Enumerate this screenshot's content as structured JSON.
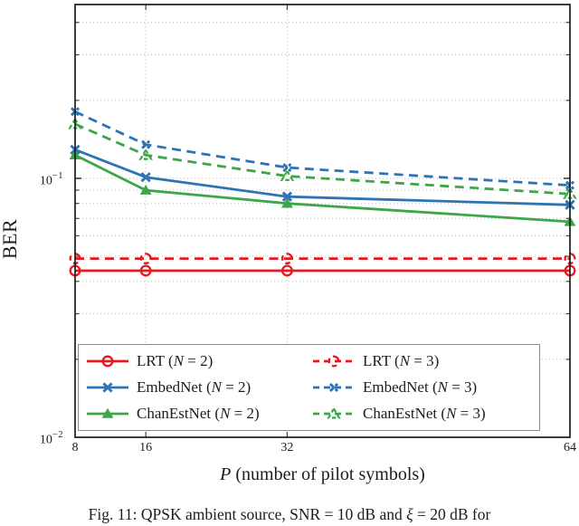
{
  "chart_data": {
    "type": "line",
    "title": "",
    "ylabel": "BER",
    "xlabel_segments": [
      {
        "t": "P",
        "i": true
      },
      {
        "t": " (number of pilot symbols)"
      }
    ],
    "xscale": "linear",
    "yscale": "log",
    "xlim": [
      8,
      64
    ],
    "ylim": [
      0.01,
      0.469
    ],
    "x": [
      8,
      16,
      32,
      64
    ],
    "xticks": {
      "values": [
        8,
        16,
        32,
        64
      ],
      "labels": [
        "8",
        "16",
        "32",
        "64"
      ]
    },
    "grid_x": [
      16,
      32
    ],
    "yticks": {
      "major": [
        {
          "value": 0.1,
          "base": "10",
          "exp": "−1"
        },
        {
          "value": 0.01,
          "base": "10",
          "exp": "−2"
        }
      ],
      "minor_values": [
        0.4,
        0.3,
        0.2,
        0.09,
        0.08,
        0.07,
        0.06,
        0.05,
        0.04,
        0.03,
        0.02
      ]
    },
    "grid": "dotted-both",
    "legend_position": "lower-left-inside",
    "series": [
      {
        "name": "LRT",
        "n": 2,
        "label_segments": [
          {
            "t": "LRT ("
          },
          {
            "t": "N",
            "i": true
          },
          {
            "t": " = 2)"
          }
        ],
        "color": "#e5191f",
        "line": "solid",
        "marker": "circle-open",
        "values": [
          0.044,
          0.044,
          0.044,
          0.044
        ]
      },
      {
        "name": "LRT",
        "n": 3,
        "label_segments": [
          {
            "t": "LRT ("
          },
          {
            "t": "N",
            "i": true
          },
          {
            "t": " = 3)"
          }
        ],
        "color": "#e5191f",
        "line": "dashed",
        "marker": "circle-open",
        "values": [
          0.049,
          0.049,
          0.049,
          0.049
        ]
      },
      {
        "name": "EmbedNet",
        "n": 2,
        "label_segments": [
          {
            "t": "EmbedNet ("
          },
          {
            "t": "N",
            "i": true
          },
          {
            "t": " = 2)"
          }
        ],
        "color": "#2e74b5",
        "line": "solid",
        "marker": "x",
        "values": [
          0.129,
          0.101,
          0.085,
          0.079
        ]
      },
      {
        "name": "EmbedNet",
        "n": 3,
        "label_segments": [
          {
            "t": "EmbedNet ("
          },
          {
            "t": "N",
            "i": true
          },
          {
            "t": " = 3)"
          }
        ],
        "color": "#2e74b5",
        "line": "dashed",
        "marker": "x",
        "values": [
          0.181,
          0.135,
          0.11,
          0.094
        ]
      },
      {
        "name": "ChanEstNet",
        "n": 2,
        "label_segments": [
          {
            "t": "ChanEstNet ("
          },
          {
            "t": "N",
            "i": true
          },
          {
            "t": " = 2)"
          }
        ],
        "color": "#3da648",
        "line": "solid",
        "marker": "triangle",
        "values": [
          0.123,
          0.09,
          0.08,
          0.068
        ]
      },
      {
        "name": "ChanEstNet",
        "n": 3,
        "label_segments": [
          {
            "t": "ChanEstNet ("
          },
          {
            "t": "N",
            "i": true
          },
          {
            "t": " = 3)"
          }
        ],
        "color": "#3da648",
        "line": "dashed",
        "marker": "triangle",
        "values": [
          0.162,
          0.123,
          0.102,
          0.087
        ]
      }
    ]
  },
  "caption_segments": [
    {
      "t": "Fig. 11: QPSK ambient source, SNR = 10 dB and "
    },
    {
      "t": "ξ",
      "i": true
    },
    {
      "t": " = 20 dB for"
    }
  ],
  "colors": {
    "red": "#e5191f",
    "blue": "#2e74b5",
    "green": "#3da648",
    "grid": "#c9c9c9",
    "axis": "#1c1c1c",
    "legend_border": "#888888"
  }
}
